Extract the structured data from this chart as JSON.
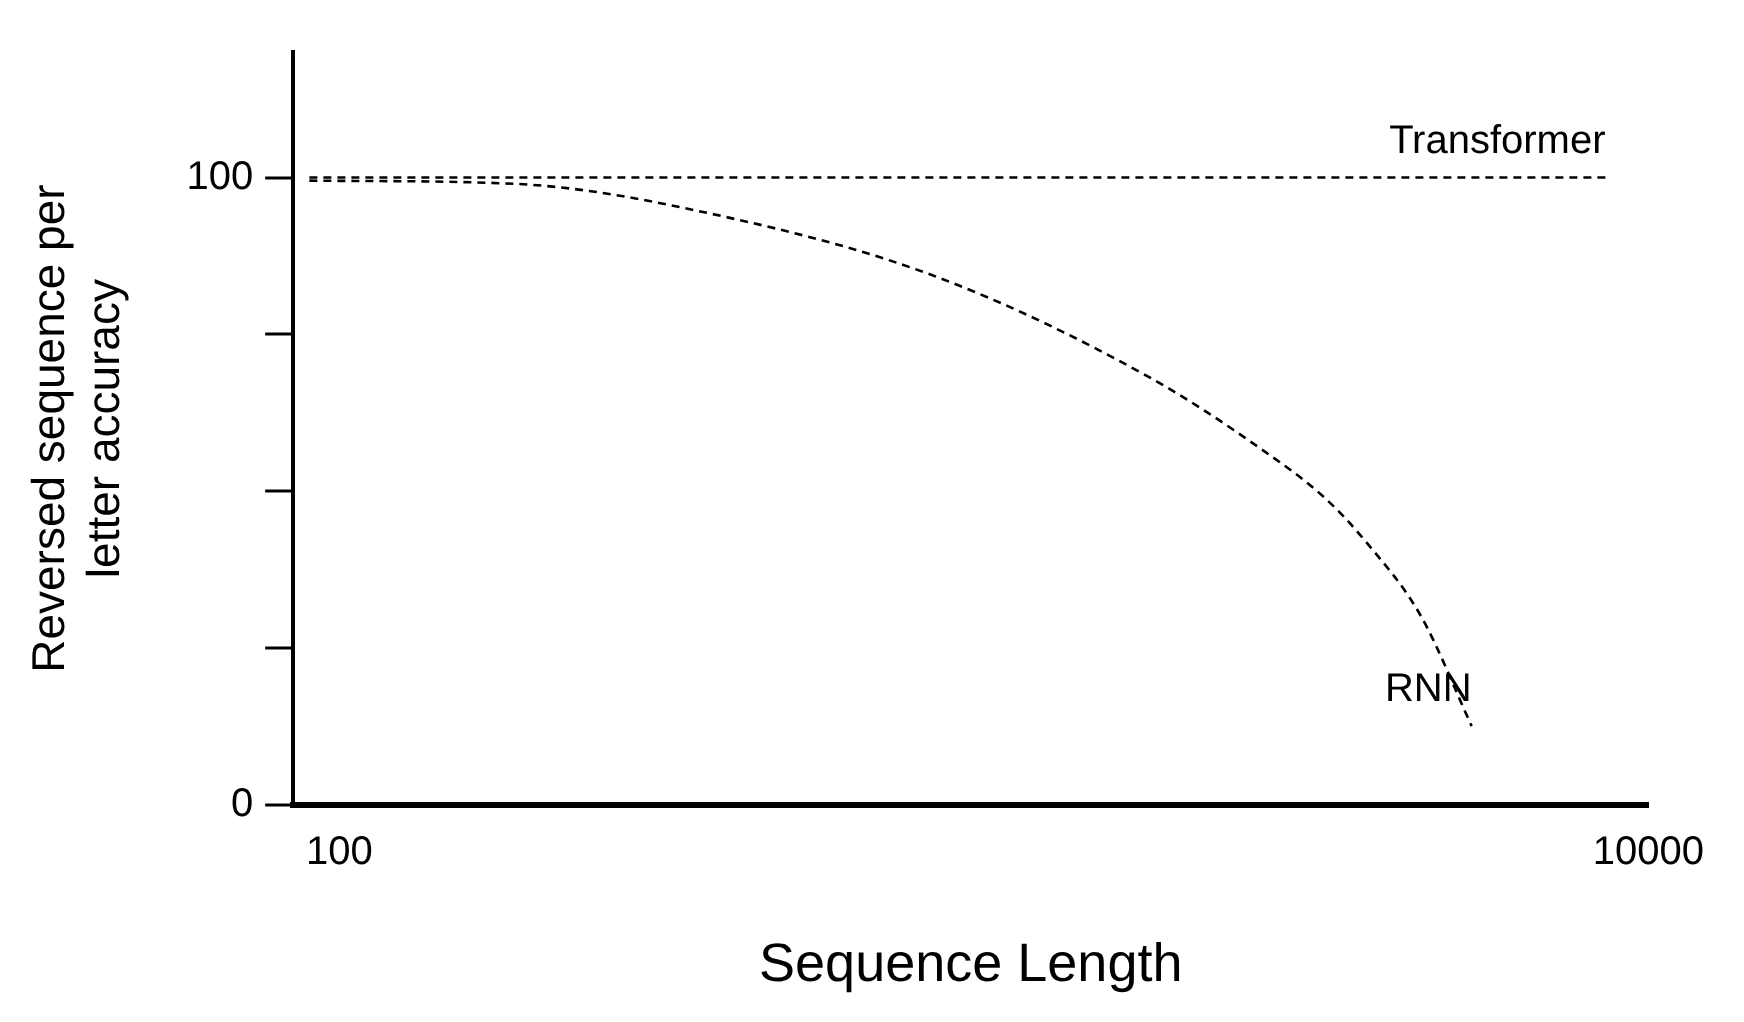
{
  "chart_data": {
    "type": "line",
    "xlabel": "Sequence Length",
    "ylabel": "Reversed sequence per letter accuracy",
    "log": "x",
    "xlim": [
      85,
      10000
    ],
    "xticks": [
      100,
      10000
    ],
    "ylim": [
      0,
      120
    ],
    "yticks": [
      0,
      {
        "value": 25,
        "label": null
      },
      {
        "value": 50,
        "label": null
      },
      {
        "value": 75,
        "label": null
      },
      100
    ],
    "grid": false,
    "legend": false,
    "marker": "none",
    "line_style": "dashed",
    "series": [
      {
        "name": "Transformer",
        "color": "#000000",
        "x": [
          90,
          8600
        ],
        "values": [
          100,
          100
        ]
      },
      {
        "name": "RNN",
        "color": "#000000",
        "x": [
          90,
          185,
          390,
          826,
          1740,
          2540,
          3200,
          3700,
          4500,
          5370
        ],
        "values": [
          99.5,
          99,
          93.7,
          84,
          68,
          57,
          49,
          42,
          30,
          12.6
        ]
      }
    ]
  }
}
